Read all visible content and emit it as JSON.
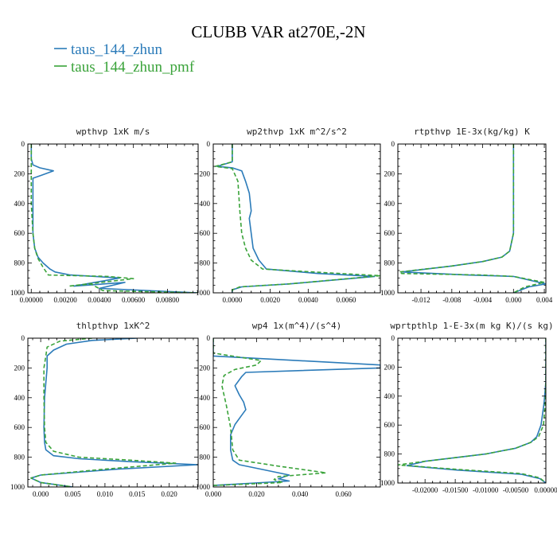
{
  "figure": {
    "title": "CLUBB VAR at270E,-2N",
    "legend": [
      {
        "label": "taus_144_zhun",
        "color": "#2b7bb9"
      },
      {
        "label": "taus_144_zhun_pmf",
        "color": "#3aa33a"
      }
    ]
  },
  "chart_data": [
    {
      "type": "line",
      "title": "wpthvp   1xK m/s",
      "xlim": [
        -0.0002,
        0.0098
      ],
      "ylim": [
        1000,
        0
      ],
      "xticks": [
        0,
        0.002,
        0.004,
        0.006,
        0.008
      ],
      "xtick_labels": [
        "0.00000",
        "0.00200",
        "0.00400",
        "0.00600",
        "0.00800"
      ],
      "yticks": [
        0,
        200,
        400,
        600,
        800,
        1000
      ],
      "series": [
        {
          "name": "taus_144_zhun",
          "color": "#2b7bb9",
          "dashed": false,
          "x": [
            0.0,
            0.0,
            0.0001,
            0.0005,
            0.0013,
            0.0006,
            0.0001,
            0.0001,
            0.0001,
            0.0002,
            0.0004,
            0.0007,
            0.0011,
            0.0014,
            0.0023,
            0.0052,
            0.0025,
            0.0055,
            0.004,
            0.0098
          ],
          "y": [
            0,
            100,
            140,
            160,
            180,
            210,
            230,
            300,
            600,
            700,
            760,
            800,
            840,
            860,
            880,
            900,
            955,
            930,
            970,
            1000
          ]
        },
        {
          "name": "taus_144_zhun_pmf",
          "color": "#3aa33a",
          "dashed": true,
          "x": [
            0.0,
            0.0,
            0.0,
            0.0,
            0.0001,
            0.0002,
            0.0004,
            0.0007,
            0.001,
            0.0045,
            0.006,
            0.0022,
            0.0035,
            0.0042,
            0.0098
          ],
          "y": [
            0,
            100,
            200,
            400,
            600,
            700,
            770,
            830,
            880,
            890,
            905,
            955,
            940,
            985,
            1000
          ]
        }
      ]
    },
    {
      "type": "line",
      "title": "wp2thvp   1xK m^2/s^2",
      "xlim": [
        -0.001,
        0.0078
      ],
      "ylim": [
        1000,
        0
      ],
      "xticks": [
        0,
        0.002,
        0.004,
        0.006
      ],
      "xtick_labels": [
        "0.0000",
        "0.0020",
        "0.0040",
        "0.0060"
      ],
      "yticks": [
        0,
        200,
        400,
        600,
        800,
        1000
      ],
      "series": [
        {
          "name": "taus_144_zhun",
          "color": "#2b7bb9",
          "dashed": false,
          "x": [
            0.0,
            0.0,
            -0.0008,
            0.0,
            0.0005,
            0.0007,
            0.0009,
            0.001,
            0.0009,
            0.001,
            0.0011,
            0.0014,
            0.0018,
            0.0045,
            0.0075,
            0.003,
            0.0005,
            0.0,
            0.0
          ],
          "y": [
            0,
            120,
            150,
            160,
            180,
            250,
            330,
            450,
            500,
            600,
            700,
            780,
            840,
            870,
            890,
            940,
            960,
            980,
            1000
          ]
        },
        {
          "name": "taus_144_zhun_pmf",
          "color": "#3aa33a",
          "dashed": true,
          "x": [
            0.0,
            0.0,
            -0.0009,
            0.0,
            0.0003,
            0.0004,
            0.0005,
            0.0007,
            0.001,
            0.0016,
            0.005,
            0.0078,
            0.003,
            0.0004,
            0.0,
            0.0
          ],
          "y": [
            0,
            120,
            150,
            165,
            250,
            450,
            600,
            700,
            780,
            840,
            865,
            885,
            940,
            960,
            980,
            1000
          ]
        }
      ]
    },
    {
      "type": "line",
      "title": "rtpthvp   1E-3x(kg/kg) K",
      "xlim": [
        -0.015,
        0.0042
      ],
      "ylim": [
        1000,
        0
      ],
      "xticks": [
        -0.012,
        -0.008,
        -0.004,
        0.0,
        0.004
      ],
      "xtick_labels": [
        "-0.012",
        "-0.008",
        "-0.004",
        "0.000",
        "0.004"
      ],
      "yticks": [
        0,
        200,
        400,
        600,
        800,
        1000
      ],
      "series": [
        {
          "name": "taus_144_zhun",
          "color": "#2b7bb9",
          "dashed": false,
          "x": [
            0.0,
            0.0,
            0.0,
            -0.0005,
            -0.0015,
            -0.004,
            -0.008,
            -0.0145,
            -0.006,
            0.0,
            0.0042,
            0.002,
            0.0
          ],
          "y": [
            0,
            200,
            600,
            720,
            760,
            790,
            820,
            860,
            880,
            890,
            940,
            960,
            1000
          ]
        },
        {
          "name": "taus_144_zhun_pmf",
          "color": "#3aa33a",
          "dashed": true,
          "x": [
            0.0,
            0.0,
            0.0,
            -0.0005,
            -0.0015,
            -0.004,
            -0.008,
            -0.0148,
            -0.0145,
            -0.004,
            0.0,
            0.004,
            0.0015,
            0.0
          ],
          "y": [
            0,
            200,
            600,
            720,
            760,
            790,
            820,
            860,
            870,
            880,
            890,
            930,
            960,
            1000
          ]
        }
      ]
    },
    {
      "type": "line",
      "title": "thlpthvp   1xK^2",
      "xlim": [
        -0.002,
        0.0245
      ],
      "ylim": [
        1000,
        0
      ],
      "xticks": [
        0,
        0.005,
        0.01,
        0.015,
        0.02
      ],
      "xtick_labels": [
        "0.000",
        "0.005",
        "0.010",
        "0.015",
        "0.020"
      ],
      "yticks": [
        0,
        200,
        400,
        600,
        800,
        1000
      ],
      "series": [
        {
          "name": "taus_144_zhun",
          "color": "#2b7bb9",
          "dashed": false,
          "x": [
            0.015,
            0.008,
            0.004,
            0.002,
            0.001,
            0.001,
            0.0006,
            0.0005,
            0.0006,
            0.0008,
            0.002,
            0.006,
            0.014,
            0.0245,
            0.012,
            0.0,
            -0.0015,
            0.0,
            0.005
          ],
          "y": [
            0,
            15,
            40,
            80,
            120,
            200,
            400,
            600,
            700,
            750,
            790,
            810,
            830,
            850,
            880,
            920,
            940,
            970,
            1000
          ]
        },
        {
          "name": "taus_144_zhun_pmf",
          "color": "#3aa33a",
          "dashed": true,
          "x": [
            0.008,
            0.003,
            0.001,
            0.0008,
            0.0005,
            0.0005,
            0.0006,
            0.0008,
            0.002,
            0.006,
            0.014,
            0.021,
            0.01,
            0.0,
            -0.0015,
            0.0,
            0.005
          ],
          "y": [
            0,
            20,
            60,
            120,
            200,
            400,
            600,
            700,
            760,
            800,
            820,
            840,
            880,
            920,
            940,
            970,
            1000
          ]
        }
      ]
    },
    {
      "type": "line",
      "title": "wp4   1x(m^4)/(s^4)",
      "xlim": [
        0.0,
        0.077
      ],
      "ylim": [
        1000,
        0
      ],
      "xticks": [
        0,
        0.02,
        0.04,
        0.06
      ],
      "xtick_labels": [
        "0.000",
        "0.020",
        "0.040",
        "0.060"
      ],
      "yticks": [
        0,
        200,
        400,
        600,
        800,
        1000
      ],
      "series": [
        {
          "name": "taus_144_zhun",
          "color": "#2b7bb9",
          "dashed": false,
          "x": [
            0.0,
            0.0,
            0.077,
            0.077,
            0.015,
            0.013,
            0.01,
            0.012,
            0.014,
            0.015,
            0.013,
            0.01,
            0.008,
            0.008,
            0.009,
            0.012,
            0.022,
            0.035,
            0.03,
            0.035,
            0.0,
            0.0
          ],
          "y": [
            0,
            120,
            180,
            200,
            230,
            260,
            320,
            380,
            430,
            480,
            520,
            580,
            650,
            750,
            820,
            850,
            880,
            920,
            945,
            960,
            990,
            1000
          ]
        },
        {
          "name": "taus_144_zhun_pmf",
          "color": "#3aa33a",
          "dashed": true,
          "x": [
            0.0,
            0.0,
            0.022,
            0.02,
            0.01,
            0.005,
            0.004,
            0.006,
            0.008,
            0.009,
            0.012,
            0.03,
            0.052,
            0.03,
            0.028,
            0.032,
            0.0,
            0.0
          ],
          "y": [
            0,
            100,
            150,
            180,
            210,
            250,
            320,
            450,
            600,
            750,
            820,
            860,
            905,
            930,
            950,
            970,
            990,
            1000
          ]
        }
      ]
    },
    {
      "type": "line",
      "title": "wprtpthlp   1-E-3x(m kg K)/(s kg)",
      "xlim": [
        -0.0245,
        0.0
      ],
      "ylim": [
        1000,
        0
      ],
      "xticks": [
        -0.02,
        -0.015,
        -0.01,
        -0.005,
        0.0
      ],
      "xtick_labels": [
        "-0.02000",
        "-0.01500",
        "-0.01000",
        "-0.00500",
        "0.00000"
      ],
      "yticks": [
        0,
        200,
        400,
        600,
        800,
        1000
      ],
      "series": [
        {
          "name": "taus_144_zhun",
          "color": "#2b7bb9",
          "dashed": false,
          "x": [
            0.0,
            0.0,
            -0.0003,
            -0.0008,
            -0.0015,
            -0.0025,
            -0.005,
            -0.01,
            -0.02,
            -0.023,
            -0.015,
            -0.004,
            -0.001,
            0.0
          ],
          "y": [
            0,
            300,
            450,
            600,
            680,
            720,
            760,
            800,
            850,
            880,
            910,
            940,
            970,
            1000
          ]
        },
        {
          "name": "taus_144_zhun_pmf",
          "color": "#3aa33a",
          "dashed": true,
          "x": [
            0.0,
            0.0,
            -0.0001,
            -0.0004,
            -0.0012,
            -0.0025,
            -0.005,
            -0.01,
            -0.02,
            -0.0245,
            -0.015,
            -0.004,
            -0.001,
            0.0
          ],
          "y": [
            0,
            300,
            450,
            600,
            680,
            720,
            760,
            800,
            850,
            875,
            905,
            935,
            965,
            1000
          ]
        }
      ]
    }
  ]
}
